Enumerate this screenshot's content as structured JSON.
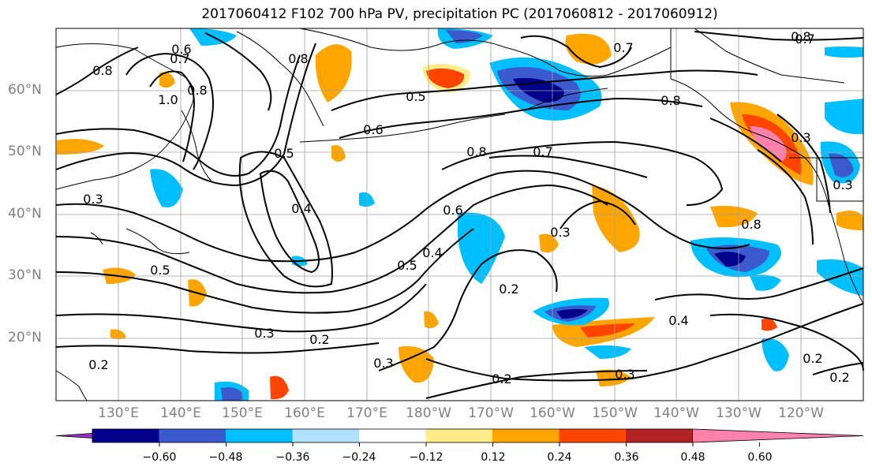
{
  "title": "2017060412 F102 700 hPa PV, precipitation PC (2017060812 - 2017060912)",
  "map": {
    "lat_labels": [
      "60°N",
      "50°N",
      "40°N",
      "30°N",
      "20°N"
    ],
    "lon_labels": [
      "130°E",
      "140°E",
      "150°E",
      "160°E",
      "170°E",
      "180°W",
      "170°W",
      "160°W",
      "150°W",
      "140°W",
      "130°W",
      "120°W"
    ],
    "contour_labels": [
      "0.6",
      "0.7",
      "0.8",
      "0.8",
      "1.0",
      "0.8",
      "0.5",
      "0.6",
      "0.7",
      "0.8",
      "0.7",
      "0.8",
      "0.5",
      "0.4",
      "0.3",
      "0.5",
      "0.2",
      "0.3",
      "0.2",
      "0.3",
      "0.2",
      "0.3",
      "0.6",
      "0.4",
      "0.5",
      "0.3",
      "0.8",
      "0.3",
      "0.4",
      "0.2",
      "0.2",
      "0.8",
      "0.7",
      "0.2",
      "0.3"
    ]
  },
  "colorbar": {
    "tick_labels": [
      "−0.60",
      "−0.48",
      "−0.36",
      "−0.24",
      "−0.12",
      "0.12",
      "0.24",
      "0.36",
      "0.48",
      "0.60"
    ],
    "colors": [
      "#9932cc",
      "#00008b",
      "#3a5acd",
      "#00bfff",
      "#b0e2ff",
      "#ffffff",
      "#ffec8b",
      "#ffa500",
      "#ff4500",
      "#b22222",
      "#ff82ab"
    ]
  }
}
